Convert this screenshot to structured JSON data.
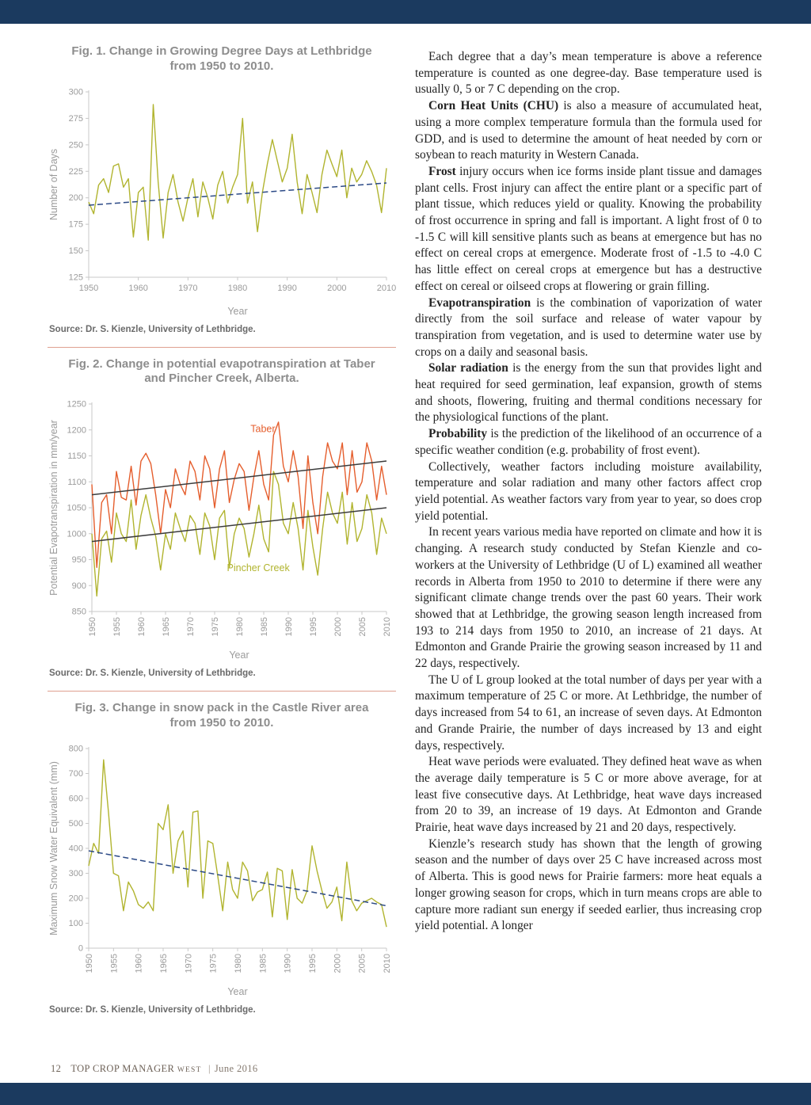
{
  "page": {
    "colors": {
      "bar": "#1b3a5f",
      "separator": "#dfa090",
      "olive": "#b1b42f",
      "orange": "#e55e2d",
      "trend_navy": "#2c4a86",
      "trend_black": "#3c3c3c"
    },
    "footer": {
      "page_number": "12",
      "magazine": "TOP CROP MANAGER",
      "edition": "WEST",
      "divider": "|",
      "issue": "June 2016"
    }
  },
  "chart_data": [
    {
      "type": "line",
      "title": "Fig. 1. Change in Growing Degree Days at Lethbridge from 1950 to 2010.",
      "title_line1": "Fig. 1. Change in Growing Degree Days at Lethbridge",
      "title_line2": "from 1950 to 2010.",
      "xlabel": "Year",
      "ylabel": "Number of Days",
      "x_start": 1950,
      "x_end": 2010,
      "ylim": [
        125,
        300
      ],
      "yticks": [
        125,
        150,
        175,
        200,
        225,
        250,
        275,
        300
      ],
      "xticks": [
        1950,
        1960,
        1970,
        1980,
        1990,
        2000,
        2010
      ],
      "xtick_rotate": false,
      "grid": false,
      "series": [
        {
          "name": "Growing Degree Days",
          "color": "#b1b42f",
          "values": [
            196,
            185,
            212,
            218,
            205,
            230,
            232,
            210,
            218,
            163,
            205,
            210,
            160,
            288,
            215,
            162,
            205,
            222,
            196,
            178,
            200,
            218,
            182,
            215,
            200,
            180,
            212,
            225,
            195,
            210,
            222,
            275,
            195,
            215,
            168,
            205,
            232,
            255,
            235,
            215,
            228,
            260,
            215,
            185,
            222,
            205,
            186,
            222,
            245,
            232,
            220,
            245,
            200,
            228,
            215,
            222,
            235,
            225,
            212,
            186,
            228
          ]
        }
      ],
      "trend_lines": [
        {
          "name": "GDD trend",
          "from": 193,
          "to": 214,
          "style": "dashed",
          "color": "#2c4a86"
        }
      ],
      "annotations": [],
      "source": "Source: Dr. S. Kienzle, University of Lethbridge."
    },
    {
      "type": "line",
      "title": "Fig. 2. Change in potential evapotranspiration at Taber and Pincher Creek, Alberta.",
      "title_line1": "Fig. 2. Change in potential evapotranspiration at Taber",
      "title_line2": "and Pincher Creek, Alberta.",
      "xlabel": "Year",
      "ylabel": "Potential Evapotranspiration in mm/year",
      "x_start": 1950,
      "x_end": 2010,
      "ylim": [
        850,
        1250
      ],
      "yticks": [
        850,
        900,
        950,
        1000,
        1050,
        1100,
        1150,
        1200,
        1250
      ],
      "xticks": [
        1950,
        1955,
        1960,
        1965,
        1970,
        1975,
        1980,
        1985,
        1990,
        1995,
        2000,
        2005,
        2010
      ],
      "xtick_rotate": true,
      "grid": false,
      "series": [
        {
          "name": "Pincher Creek",
          "color": "#b1b42f",
          "values": [
            1000,
            880,
            990,
            1005,
            945,
            1040,
            1000,
            985,
            1065,
            970,
            1035,
            1075,
            1030,
            995,
            930,
            1000,
            970,
            1040,
            1010,
            985,
            1035,
            1020,
            960,
            1040,
            1015,
            950,
            1030,
            1045,
            935,
            1000,
            1030,
            1010,
            955,
            1000,
            1055,
            990,
            965,
            1120,
            1095,
            1020,
            1000,
            1060,
            1010,
            930,
            1045,
            975,
            920,
            1010,
            1080,
            1040,
            1020,
            1080,
            980,
            1060,
            985,
            1010,
            1075,
            1040,
            960,
            1030,
            1000
          ]
        },
        {
          "name": "Taber",
          "color": "#e55e2d",
          "values": [
            1095,
            935,
            1060,
            1075,
            1000,
            1120,
            1070,
            1065,
            1130,
            1055,
            1140,
            1155,
            1135,
            1075,
            1000,
            1085,
            1050,
            1125,
            1095,
            1075,
            1140,
            1120,
            1065,
            1150,
            1125,
            1050,
            1125,
            1160,
            1060,
            1105,
            1135,
            1120,
            1045,
            1110,
            1160,
            1095,
            1065,
            1190,
            1215,
            1130,
            1100,
            1160,
            1110,
            1010,
            1150,
            1060,
            1000,
            1110,
            1175,
            1140,
            1125,
            1175,
            1075,
            1160,
            1080,
            1100,
            1175,
            1140,
            1065,
            1130,
            1075
          ]
        }
      ],
      "trend_lines": [
        {
          "name": "Taber trend",
          "from": 1075,
          "to": 1140,
          "style": "solid",
          "color": "#3c3c3c"
        },
        {
          "name": "Pincher Creek trend",
          "from": 985,
          "to": 1050,
          "style": "solid",
          "color": "#3c3c3c"
        }
      ],
      "annotations": [
        {
          "text": "Taber",
          "x": 1982.3,
          "y": 1196,
          "color": "#e55e2d"
        },
        {
          "text": "Pincher Creek",
          "x": 1977.5,
          "y": 928,
          "color": "#b1b42f"
        }
      ],
      "source": "Source: Dr. S. Kienzle, University of Lethbridge."
    },
    {
      "type": "line",
      "title": "Fig. 3. Change in snow pack in the Castle River area from 1950 to 2010.",
      "title_line1": "Fig. 3. Change in snow pack in the Castle River area",
      "title_line2": "from 1950 to 2010.",
      "xlabel": "Year",
      "ylabel": "Maximum Snow Water Equivalent (mm)",
      "x_start": 1950,
      "x_end": 2010,
      "ylim": [
        0,
        800
      ],
      "yticks": [
        0,
        100,
        200,
        300,
        400,
        500,
        600,
        700,
        800
      ],
      "xticks": [
        1950,
        1955,
        1960,
        1965,
        1970,
        1975,
        1980,
        1985,
        1990,
        1995,
        2000,
        2005,
        2010
      ],
      "xtick_rotate": true,
      "grid": false,
      "series": [
        {
          "name": "Maximum Snow Water Equivalent",
          "color": "#b1b42f",
          "values": [
            330,
            420,
            380,
            755,
            540,
            300,
            290,
            150,
            265,
            230,
            175,
            160,
            185,
            150,
            500,
            475,
            575,
            300,
            430,
            470,
            245,
            545,
            550,
            200,
            430,
            420,
            290,
            150,
            345,
            235,
            200,
            345,
            310,
            190,
            225,
            235,
            305,
            125,
            320,
            310,
            115,
            315,
            200,
            180,
            230,
            410,
            310,
            230,
            160,
            185,
            245,
            110,
            345,
            190,
            150,
            180,
            190,
            200,
            185,
            175,
            85
          ]
        }
      ],
      "trend_lines": [
        {
          "name": "snow pack trend",
          "from": 390,
          "to": 170,
          "style": "dashed",
          "color": "#2c4a86"
        }
      ],
      "annotations": [],
      "source": "Source: Dr. S. Kienzle, University of Lethbridge."
    }
  ],
  "article": {
    "paragraphs": [
      {
        "lead": "",
        "text": "Each degree that a day’s mean temperature is above a reference temperature is counted as one degree-day. Base temperature used is usually 0, 5 or 7 C depending on the crop."
      },
      {
        "lead": "Corn Heat Units (CHU)",
        "text": " is also a measure of accumulated heat, using a more complex temperature formula than the formula used for GDD, and is used to determine the amount of heat needed by corn or soybean to reach maturity in Western Canada."
      },
      {
        "lead": "Frost",
        "text": " injury occurs when ice forms inside plant tissue and damages plant cells. Frost injury can affect the entire plant or a specific part of plant tissue, which reduces yield or quality. Knowing the probability of frost occurrence in spring and fall is important. A light frost of 0 to -1.5 C will kill sensitive plants such as beans at emergence but has no effect on cereal crops at emergence. Moderate frost of -1.5 to -4.0 C has little effect on cereal crops at emergence but has a destructive effect on cereal or oilseed crops at flowering or grain filling."
      },
      {
        "lead": "Evapotranspiration",
        "text": " is the combination of vaporization of water directly from the soil surface and release of water vapour by transpiration from vegetation, and is used to determine water use by crops on a daily and seasonal basis."
      },
      {
        "lead": "Solar radiation",
        "text": " is the energy from the sun that provides light and heat required for seed germination, leaf expansion, growth of stems and shoots, flowering, fruiting and thermal conditions necessary for the physiological functions of the plant."
      },
      {
        "lead": "Probability",
        "text": " is the prediction of the likelihood of an occurrence of a specific weather condition (e.g. probability of frost event)."
      },
      {
        "lead": "",
        "text": "Collectively, weather factors including moisture availability, temperature and solar radiation and many other factors affect crop yield potential. As weather factors vary from year to year, so does crop yield potential."
      },
      {
        "lead": "",
        "text": "In recent years various media have reported on climate and how it is changing. A research study conducted by Stefan Kienzle and co-workers at the University of Lethbridge (U of L) examined all weather records in Alberta from 1950 to 2010 to determine if there were any significant climate change trends over the past 60 years. Their work showed that at Lethbridge, the growing season length increased from 193 to 214 days from 1950 to 2010, an increase of 21 days. At Edmonton and Grande Prairie the growing season increased by 11 and 22 days, respectively."
      },
      {
        "lead": "",
        "text": "The U of L group looked at the total number of days per year with a maximum temperature of 25 C or more. At Lethbridge, the number of days increased from 54 to 61, an increase of seven days. At Edmonton and Grande Prairie, the number of days increased by 13 and eight days, respectively."
      },
      {
        "lead": "",
        "text": "Heat wave periods were evaluated. They defined heat wave as when the average daily temperature is 5 C or more above average, for at least five consecutive days. At Lethbridge, heat wave days increased from 20 to 39, an increase of 19 days. At Edmonton and Grande Prairie, heat wave days increased by 21 and 20 days, respectively."
      },
      {
        "lead": "",
        "text": "Kienzle’s research study has shown that the length of growing season and the number of days over 25 C have increased across most of Alberta. This is good news for Prairie farmers: more heat equals a longer growing season for crops, which in turn means crops are able to capture more radiant sun energy if seeded earlier, thus increasing crop yield potential. A longer"
      }
    ]
  }
}
